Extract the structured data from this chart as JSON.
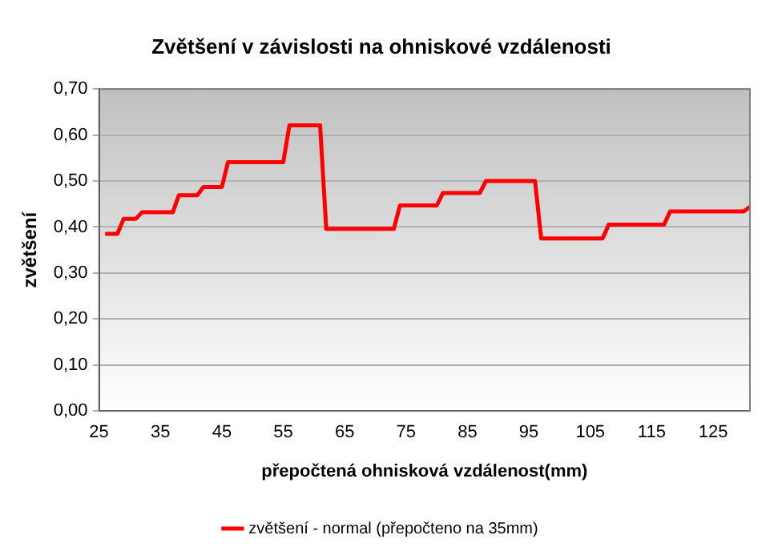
{
  "chart_data": {
    "type": "line",
    "title": "Zvětšení v závislosti na ohniskové vzdálenosti",
    "xlabel": "přepočtená ohnisková vzdálenost(mm)",
    "ylabel": "zvětšení",
    "x": [
      26,
      28,
      29,
      31,
      32,
      37,
      38,
      41,
      42,
      45,
      46,
      55,
      56,
      61,
      62,
      73,
      74,
      80,
      81,
      87,
      88,
      96,
      97,
      107,
      108,
      117,
      118,
      130,
      131
    ],
    "series": [
      {
        "name": "zvětšení - normal (přepočteno na 35mm)",
        "color": "#ff0000",
        "values": [
          0.385,
          0.385,
          0.418,
          0.418,
          0.432,
          0.432,
          0.469,
          0.469,
          0.487,
          0.487,
          0.541,
          0.541,
          0.621,
          0.621,
          0.396,
          0.396,
          0.447,
          0.447,
          0.474,
          0.474,
          0.5,
          0.5,
          0.375,
          0.375,
          0.405,
          0.405,
          0.434,
          0.434,
          0.444
        ]
      }
    ],
    "xlim": [
      25,
      131
    ],
    "xticks": [
      25,
      35,
      45,
      55,
      65,
      75,
      85,
      95,
      105,
      115,
      125
    ],
    "ylim": [
      0,
      0.7
    ],
    "yticks": [
      {
        "value": 0,
        "label": "0,00"
      },
      {
        "value": 0.1,
        "label": "0,10"
      },
      {
        "value": 0.2,
        "label": "0,20"
      },
      {
        "value": 0.3,
        "label": "0,30"
      },
      {
        "value": 0.4,
        "label": "0,40"
      },
      {
        "value": 0.5,
        "label": "0,50"
      },
      {
        "value": 0.6,
        "label": "0,60"
      },
      {
        "value": 0.7,
        "label": "0,70"
      }
    ],
    "grid": "y",
    "legend": "bottom",
    "marker": "none",
    "line_style": "solid"
  }
}
